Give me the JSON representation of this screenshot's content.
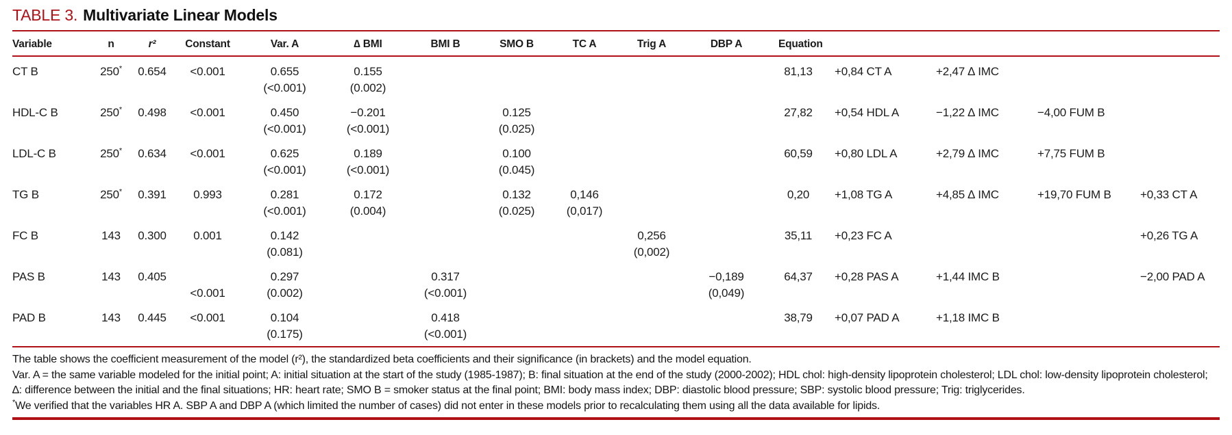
{
  "title": {
    "label": "TABLE 3.",
    "text": "Multivariate Linear Models"
  },
  "colors": {
    "accent": "#b01116",
    "text": "#1b1b1b"
  },
  "table": {
    "headers": [
      {
        "key": "variable",
        "label": "Variable"
      },
      {
        "key": "n",
        "label": "n"
      },
      {
        "key": "r2",
        "label": "r²"
      },
      {
        "key": "constant",
        "label": "Constant"
      },
      {
        "key": "var_a",
        "label": "Var. A"
      },
      {
        "key": "d_bmi",
        "label": "∆ BMI"
      },
      {
        "key": "bmi_b",
        "label": "BMI B"
      },
      {
        "key": "smo_b",
        "label": "SMO B"
      },
      {
        "key": "tc_a",
        "label": "TC A"
      },
      {
        "key": "trig_a",
        "label": "Trig A"
      },
      {
        "key": "dbp_a",
        "label": "DBP A"
      },
      {
        "key": "equation",
        "label": "Equation"
      }
    ],
    "rows": [
      {
        "variable": "CT B",
        "n": "250*",
        "r2": "0.654",
        "constant": [
          "<0.001",
          ""
        ],
        "var_a": [
          "0.655",
          "(<0.001)"
        ],
        "d_bmi": [
          "0.155",
          "(0.002)"
        ],
        "bmi_b": [
          "",
          ""
        ],
        "smo_b": [
          "",
          ""
        ],
        "tc_a": [
          "",
          ""
        ],
        "trig_a": [
          "",
          ""
        ],
        "dbp_a": [
          "",
          ""
        ],
        "equation": [
          "81,13",
          "+0,84 CT A",
          "+2,47 ∆ IMC",
          "",
          ""
        ]
      },
      {
        "variable": "HDL-C B",
        "n": "250*",
        "r2": "0.498",
        "constant": [
          "<0.001",
          ""
        ],
        "var_a": [
          "0.450",
          "(<0.001)"
        ],
        "d_bmi": [
          "−0.201",
          "(<0.001)"
        ],
        "bmi_b": [
          "",
          ""
        ],
        "smo_b": [
          "0.125",
          "(0.025)"
        ],
        "tc_a": [
          "",
          ""
        ],
        "trig_a": [
          "",
          ""
        ],
        "dbp_a": [
          "",
          ""
        ],
        "equation": [
          "27,82",
          "+0,54 HDL A",
          "−1,22 ∆ IMC",
          "−4,00 FUM B",
          ""
        ]
      },
      {
        "variable": "LDL-C B",
        "n": "250*",
        "r2": "0.634",
        "constant": [
          "<0.001",
          ""
        ],
        "var_a": [
          "0.625",
          "(<0.001)"
        ],
        "d_bmi": [
          "0.189",
          "(<0.001)"
        ],
        "bmi_b": [
          "",
          ""
        ],
        "smo_b": [
          "0.100",
          "(0.045)"
        ],
        "tc_a": [
          "",
          ""
        ],
        "trig_a": [
          "",
          ""
        ],
        "dbp_a": [
          "",
          ""
        ],
        "equation": [
          "60,59",
          "+0,80 LDL A",
          "+2,79 ∆ IMC",
          "+7,75 FUM B",
          ""
        ]
      },
      {
        "variable": "TG B",
        "n": "250*",
        "r2": "0.391",
        "constant": [
          "0.993",
          ""
        ],
        "var_a": [
          "0.281",
          "(<0.001)"
        ],
        "d_bmi": [
          "0.172",
          "(0.004)"
        ],
        "bmi_b": [
          "",
          ""
        ],
        "smo_b": [
          "0.132",
          "(0.025)"
        ],
        "tc_a": [
          "0,146",
          "(0,017)"
        ],
        "trig_a": [
          "",
          ""
        ],
        "dbp_a": [
          "",
          ""
        ],
        "equation": [
          "0,20",
          "+1,08 TG A",
          "+4,85 ∆ IMC",
          "+19,70 FUM B",
          "+0,33 CT A"
        ]
      },
      {
        "variable": "FC B",
        "n": "143",
        "r2": "0.300",
        "constant": [
          "0.001",
          ""
        ],
        "var_a": [
          "0.142",
          "(0.081)"
        ],
        "d_bmi": [
          "",
          ""
        ],
        "bmi_b": [
          "",
          ""
        ],
        "smo_b": [
          "",
          ""
        ],
        "tc_a": [
          "",
          ""
        ],
        "trig_a": [
          "0,256",
          "(0,002)"
        ],
        "dbp_a": [
          "",
          ""
        ],
        "equation": [
          "35,11",
          "+0,23 FC A",
          "",
          "",
          "+0,26 TG A"
        ]
      },
      {
        "variable": "PAS B",
        "n": "143",
        "r2": "0.405",
        "constant": [
          "",
          "<0.001"
        ],
        "var_a": [
          "0.297",
          "(0.002)"
        ],
        "d_bmi": [
          "",
          ""
        ],
        "bmi_b": [
          "0.317",
          "(<0.001)"
        ],
        "smo_b": [
          "",
          ""
        ],
        "tc_a": [
          "",
          ""
        ],
        "trig_a": [
          "",
          ""
        ],
        "dbp_a": [
          "−0,189",
          "(0,049)"
        ],
        "equation": [
          "64,37",
          "+0,28 PAS A",
          "+1,44 IMC B",
          "",
          "−2,00 PAD A"
        ]
      },
      {
        "variable": "PAD B",
        "n": "143",
        "r2": "0.445",
        "constant": [
          "<0.001",
          ""
        ],
        "var_a": [
          "0.104",
          "(0.175)"
        ],
        "d_bmi": [
          "",
          ""
        ],
        "bmi_b": [
          "0.418",
          "(<0.001)"
        ],
        "smo_b": [
          "",
          ""
        ],
        "tc_a": [
          "",
          ""
        ],
        "trig_a": [
          "",
          ""
        ],
        "dbp_a": [
          "",
          ""
        ],
        "equation": [
          "38,79",
          "+0,07 PAD A",
          "+1,18 IMC B",
          "",
          ""
        ]
      }
    ]
  },
  "footnotes": [
    {
      "marker": "",
      "text": "The table shows the coefficient measurement of the model (r²), the standardized beta coefficients and their significance (in brackets) and the model equation."
    },
    {
      "marker": "",
      "text": "Var. A = the same variable modeled for the initial point; A: initial situation at the start of the study (1985-1987); B: final situation at the end of the study (2000-2002); HDL chol: high-density lipoprotein cholesterol; LDL chol: low-density lipoprotein cholesterol; ∆: difference between the initial and the final situations; HR: heart rate; SMO B = smoker status at the final point; BMI: body mass index; DBP: diastolic blood pressure; SBP: systolic blood pressure; Trig: triglycerides."
    },
    {
      "marker": "*",
      "text": "We verified that the variables HR A. SBP A and DBP A (which limited the number of cases) did not enter in these models prior to recalculating them using all the data available for lipids."
    }
  ]
}
